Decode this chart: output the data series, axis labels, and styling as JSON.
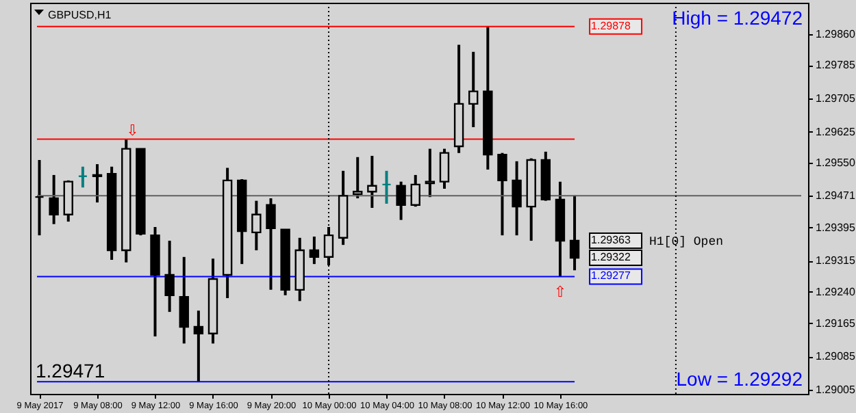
{
  "chart_data": {
    "type": "candlestick",
    "title": "GBPUSD,H1",
    "x": [
      "2017-05-09T04:00",
      "2017-05-09T05:00",
      "2017-05-09T06:00",
      "2017-05-09T07:00",
      "2017-05-09T08:00",
      "2017-05-09T09:00",
      "2017-05-09T10:00",
      "2017-05-09T11:00",
      "2017-05-09T12:00",
      "2017-05-09T13:00",
      "2017-05-09T14:00",
      "2017-05-09T15:00",
      "2017-05-09T16:00",
      "2017-05-09T17:00",
      "2017-05-09T18:00",
      "2017-05-09T19:00",
      "2017-05-09T20:00",
      "2017-05-09T21:00",
      "2017-05-09T22:00",
      "2017-05-09T23:00",
      "2017-05-10T00:00",
      "2017-05-10T01:00",
      "2017-05-10T02:00",
      "2017-05-10T03:00",
      "2017-05-10T04:00",
      "2017-05-10T05:00",
      "2017-05-10T06:00",
      "2017-05-10T07:00",
      "2017-05-10T08:00",
      "2017-05-10T09:00",
      "2017-05-10T10:00",
      "2017-05-10T11:00",
      "2017-05-10T12:00",
      "2017-05-10T13:00",
      "2017-05-10T14:00",
      "2017-05-10T15:00",
      "2017-05-10T16:00",
      "2017-05-10T17:00"
    ],
    "ohlc": [
      [
        1.29468,
        1.29557,
        1.29376,
        1.29468
      ],
      [
        1.29465,
        1.29521,
        1.29403,
        1.29426
      ],
      [
        1.29426,
        1.29508,
        1.29409,
        1.29505
      ],
      [
        1.29518,
        1.29541,
        1.29491,
        1.29518
      ],
      [
        1.29518,
        1.29547,
        1.29455,
        1.29521
      ],
      [
        1.29524,
        1.29541,
        1.29317,
        1.2934
      ],
      [
        1.2934,
        1.29607,
        1.29311,
        1.29584
      ],
      [
        1.29584,
        1.29584,
        1.29376,
        1.2938
      ],
      [
        1.29376,
        1.29396,
        1.29133,
        1.29281
      ],
      [
        1.29281,
        1.29363,
        1.29192,
        1.29232
      ],
      [
        1.29228,
        1.29324,
        1.29116,
        1.29156
      ],
      [
        1.29156,
        1.29195,
        1.29024,
        1.2914
      ],
      [
        1.2914,
        1.2932,
        1.29116,
        1.29271
      ],
      [
        1.29281,
        1.29538,
        1.29225,
        1.29508
      ],
      [
        1.29508,
        1.29511,
        1.29307,
        1.29386
      ],
      [
        1.29383,
        1.29459,
        1.2934,
        1.29426
      ],
      [
        1.29449,
        1.29465,
        1.29245,
        1.29393
      ],
      [
        1.2939,
        1.2939,
        1.29232,
        1.29245
      ],
      [
        1.29245,
        1.2937,
        1.29218,
        1.2934
      ],
      [
        1.2934,
        1.29373,
        1.29307,
        1.29324
      ],
      [
        1.29324,
        1.29396,
        1.29304,
        1.29376
      ],
      [
        1.2937,
        1.29531,
        1.29353,
        1.29471
      ],
      [
        1.29475,
        1.29564,
        1.29465,
        1.29481
      ],
      [
        1.29481,
        1.29567,
        1.29442,
        1.29495
      ],
      [
        1.29498,
        1.29531,
        1.29452,
        1.29498
      ],
      [
        1.29495,
        1.29505,
        1.29413,
        1.29449
      ],
      [
        1.29449,
        1.29521,
        1.29445,
        1.29498
      ],
      [
        1.29501,
        1.29584,
        1.29468,
        1.29505
      ],
      [
        1.29505,
        1.29584,
        1.29488,
        1.29574
      ],
      [
        1.2959,
        1.29834,
        1.29574,
        1.29692
      ],
      [
        1.29692,
        1.29817,
        1.29636,
        1.29722
      ],
      [
        1.29722,
        1.29878,
        1.29534,
        1.2957
      ],
      [
        1.2957,
        1.29574,
        1.29376,
        1.29508
      ],
      [
        1.29508,
        1.29554,
        1.29376,
        1.29445
      ],
      [
        1.29445,
        1.29561,
        1.29363,
        1.29557
      ],
      [
        1.29557,
        1.29577,
        1.29459,
        1.29462
      ],
      [
        1.29462,
        1.29505,
        1.29277,
        1.29363
      ],
      [
        1.29363,
        1.29472,
        1.29292,
        1.29322
      ]
    ],
    "colors": [
      "#000000",
      "#000000",
      "#000000",
      "#008080",
      "#000000",
      "#000000",
      "#000000",
      "#000000",
      "#000000",
      "#000000",
      "#000000",
      "#000000",
      "#000000",
      "#000000",
      "#000000",
      "#000000",
      "#000000",
      "#000000",
      "#000000",
      "#000000",
      "#000000",
      "#000000",
      "#000000",
      "#000000",
      "#008080",
      "#000000",
      "#000000",
      "#000000",
      "#000000",
      "#000000",
      "#000000",
      "#000000",
      "#000000",
      "#000000",
      "#000000",
      "#000000",
      "#000000",
      "#000000"
    ],
    "xlim": [
      "2017-05-09T03:50",
      "2017-05-11T08:40"
    ],
    "xticks": [
      {
        "value": "2017-05-09T04:00",
        "label": "9 May 2017"
      },
      {
        "value": "2017-05-09T08:00",
        "label": "9 May 08:00"
      },
      {
        "value": "2017-05-09T12:00",
        "label": "9 May 12:00"
      },
      {
        "value": "2017-05-09T16:00",
        "label": "9 May 16:00"
      },
      {
        "value": "2017-05-09T20:00",
        "label": "9 May 20:00"
      },
      {
        "value": "2017-05-10T00:00",
        "label": "10 May 00:00"
      },
      {
        "value": "2017-05-10T04:00",
        "label": "10 May 04:00"
      },
      {
        "value": "2017-05-10T08:00",
        "label": "10 May 08:00"
      },
      {
        "value": "2017-05-10T12:00",
        "label": "10 May 12:00"
      },
      {
        "value": "2017-05-10T16:00",
        "label": "10 May 16:00"
      }
    ],
    "ylim": [
      1.28995,
      1.29935
    ],
    "yticks": [
      {
        "value": 1.2986,
        "label": "1.29860"
      },
      1.29785,
      1.29705,
      1.29625,
      {
        "value": 1.2955,
        "label": "1.29550"
      },
      1.29471,
      1.29395,
      1.29315,
      {
        "value": 1.2924,
        "label": "1.29240"
      },
      1.29165,
      1.29085,
      1.29005
    ],
    "ref_lines": [
      {
        "axis": "y",
        "value": 1.29878,
        "label": "1.29878",
        "color": "#ff0000"
      },
      {
        "axis": "y",
        "value": 1.29607,
        "color": "#ff0000"
      },
      {
        "axis": "y",
        "value": 1.29471,
        "color": "#606060"
      },
      {
        "axis": "y",
        "value": 1.29277,
        "label": "1.29277",
        "color": "#0000ff"
      },
      {
        "axis": "y",
        "value": 1.29024,
        "color": "#0000ff"
      },
      {
        "axis": "x",
        "value": "2017-05-10T00:00",
        "color": "#000000",
        "line_style": "dotted"
      },
      {
        "axis": "x",
        "value": "2017-05-11T00:00",
        "color": "#000000",
        "line_style": "dotted"
      }
    ],
    "annotations": [
      {
        "text": "1.29363",
        "x": "2017-05-10T17:00",
        "y": 1.29363
      },
      {
        "text": "1.29322",
        "x": "2017-05-10T17:00",
        "y": 1.29322
      },
      {
        "text": "⇩",
        "x": "2017-05-09T11:00",
        "y": 1.29607
      },
      {
        "text": "⇧",
        "x": "2017-05-10T16:00",
        "y": 1.29277
      },
      "High = 1.29472",
      "Low = 1.29292",
      "1.29471",
      "H1[0] Open"
    ]
  }
}
